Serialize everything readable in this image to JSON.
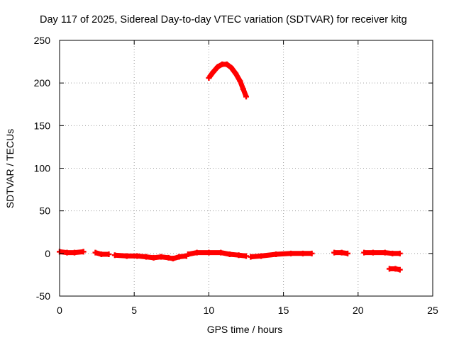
{
  "colors": {
    "series": "#ff0000",
    "axes": "#000000",
    "grid": "#a0a0a0"
  },
  "chart_data": {
    "type": "scatter",
    "title": "Day 117 of 2025, Sidereal Day-to-day VTEC variation (SDTVAR) for receiver kitg",
    "xlabel": "GPS time / hours",
    "ylabel": "SDTVAR / TECUs",
    "xlim": [
      0,
      25
    ],
    "ylim": [
      -50,
      250
    ],
    "xticks": [
      0,
      5,
      10,
      15,
      20,
      25
    ],
    "yticks": [
      -50,
      0,
      50,
      100,
      150,
      200,
      250
    ],
    "grid": true,
    "series": [
      {
        "name": "SDTVAR",
        "segments": [
          [
            [
              0.0,
              2
            ],
            [
              0.5,
              1
            ],
            [
              1.0,
              1
            ],
            [
              1.6,
              2
            ]
          ],
          [
            [
              2.4,
              1
            ],
            [
              2.8,
              -1
            ],
            [
              3.3,
              -1
            ]
          ],
          [
            [
              3.7,
              -2
            ],
            [
              4.5,
              -3
            ],
            [
              5.2,
              -3
            ],
            [
              5.8,
              -4
            ],
            [
              6.3,
              -5
            ],
            [
              6.8,
              -4
            ],
            [
              7.3,
              -5
            ],
            [
              7.6,
              -6
            ],
            [
              8.0,
              -4
            ],
            [
              8.5,
              -3
            ]
          ],
          [
            [
              8.6,
              -1
            ],
            [
              9.2,
              1
            ],
            [
              10.0,
              1
            ],
            [
              10.8,
              1
            ],
            [
              11.4,
              -1
            ],
            [
              12.0,
              -2
            ],
            [
              12.5,
              -3
            ]
          ],
          [
            [
              12.8,
              -4
            ],
            [
              13.5,
              -3
            ],
            [
              14.5,
              -1
            ],
            [
              15.5,
              0
            ],
            [
              16.3,
              0
            ],
            [
              16.9,
              0
            ]
          ],
          [
            [
              18.4,
              1
            ],
            [
              18.9,
              1
            ],
            [
              19.3,
              0
            ]
          ],
          [
            [
              20.4,
              1
            ],
            [
              21.0,
              1
            ],
            [
              21.8,
              1
            ],
            [
              22.3,
              0
            ],
            [
              22.8,
              0
            ]
          ],
          [
            [
              22.1,
              -18
            ],
            [
              22.5,
              -18
            ],
            [
              22.8,
              -19
            ]
          ],
          [
            [
              10.0,
              206
            ],
            [
              10.3,
              213
            ],
            [
              10.6,
              219
            ],
            [
              10.9,
              222
            ],
            [
              11.2,
              222
            ],
            [
              11.5,
              218
            ],
            [
              11.8,
              211
            ],
            [
              12.1,
              202
            ],
            [
              12.3,
              193
            ],
            [
              12.5,
              184
            ]
          ]
        ]
      }
    ]
  }
}
